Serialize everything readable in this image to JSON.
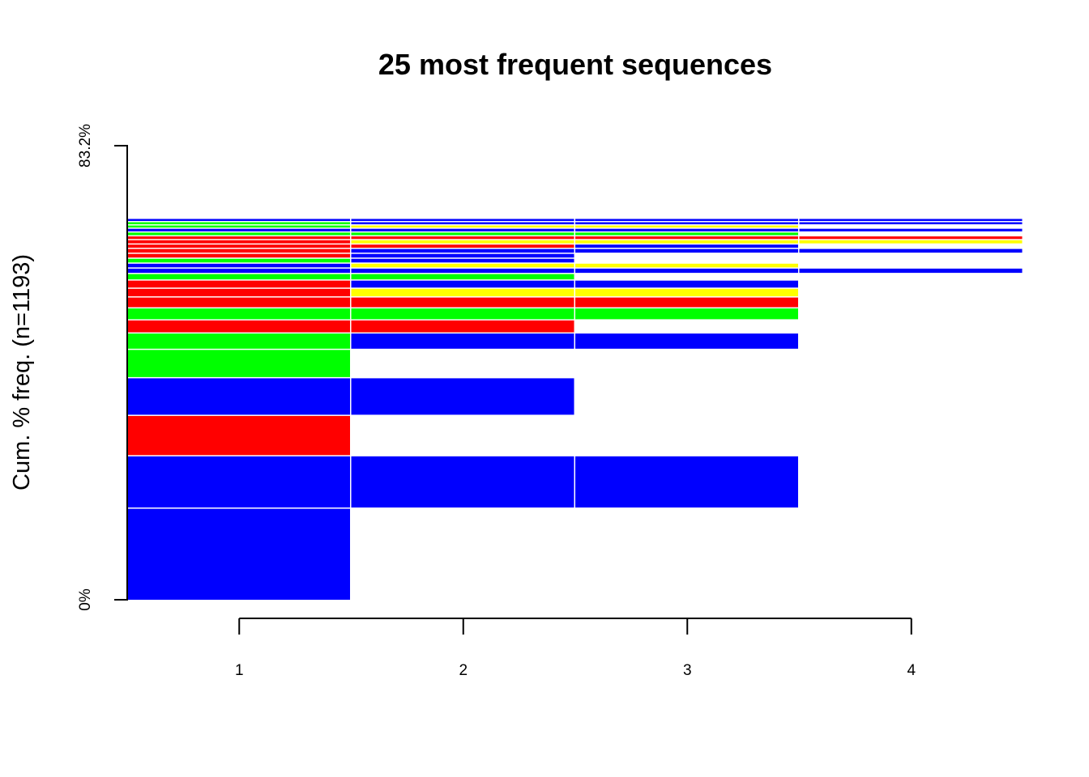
{
  "chart_data": {
    "type": "bar",
    "title": "25 most frequent sequences",
    "ylabel": "Cum. % freq. (n=1193)",
    "xlabel": "",
    "x_ticks": [
      "1",
      "2",
      "3",
      "4"
    ],
    "y_ticks": [
      "0%",
      "83.2%"
    ],
    "ylim": [
      0,
      83.2
    ],
    "state_colors": {
      "blue": "#0000FF",
      "red": "#FF0000",
      "green": "#00FF00",
      "yellow": "#FFFF00"
    },
    "sequences": [
      {
        "states": [
          "blue"
        ],
        "freq": 16.9
      },
      {
        "states": [
          "blue",
          "blue",
          "blue"
        ],
        "freq": 9.6
      },
      {
        "states": [
          "red"
        ],
        "freq": 7.4
      },
      {
        "states": [
          "blue",
          "blue"
        ],
        "freq": 6.9
      },
      {
        "states": [
          "green"
        ],
        "freq": 5.2
      },
      {
        "states": [
          "green",
          "blue",
          "blue"
        ],
        "freq": 3.0
      },
      {
        "states": [
          "red",
          "red"
        ],
        "freq": 2.4
      },
      {
        "states": [
          "green",
          "green",
          "green"
        ],
        "freq": 2.2
      },
      {
        "states": [
          "red",
          "red",
          "red"
        ],
        "freq": 2.0
      },
      {
        "states": [
          "red",
          "yellow",
          "yellow"
        ],
        "freq": 1.6
      },
      {
        "states": [
          "red",
          "blue",
          "blue"
        ],
        "freq": 1.5
      },
      {
        "states": [
          "green",
          "green"
        ],
        "freq": 1.2
      },
      {
        "states": [
          "blue",
          "blue",
          "blue",
          "blue"
        ],
        "freq": 1.0
      },
      {
        "states": [
          "blue",
          "yellow",
          "yellow"
        ],
        "freq": 0.9
      },
      {
        "states": [
          "green",
          "blue"
        ],
        "freq": 0.9
      },
      {
        "states": [
          "red",
          "blue"
        ],
        "freq": 0.9
      },
      {
        "states": [
          "red",
          "blue",
          "blue",
          "blue"
        ],
        "freq": 0.9
      },
      {
        "states": [
          "red",
          "red",
          "blue"
        ],
        "freq": 0.8
      },
      {
        "states": [
          "red",
          "yellow",
          "yellow",
          "yellow"
        ],
        "freq": 0.8
      },
      {
        "states": [
          "red",
          "red",
          "red",
          "red"
        ],
        "freq": 0.7
      },
      {
        "states": [
          "green",
          "green",
          "green"
        ],
        "freq": 0.7
      },
      {
        "states": [
          "blue",
          "blue",
          "blue",
          "blue"
        ],
        "freq": 0.7
      },
      {
        "states": [
          "green",
          "yellow",
          "yellow"
        ],
        "freq": 0.6
      },
      {
        "states": [
          "green",
          "blue",
          "blue",
          "blue"
        ],
        "freq": 0.6
      },
      {
        "states": [
          "blue",
          "blue",
          "blue",
          "blue"
        ],
        "freq": 0.6
      }
    ]
  }
}
